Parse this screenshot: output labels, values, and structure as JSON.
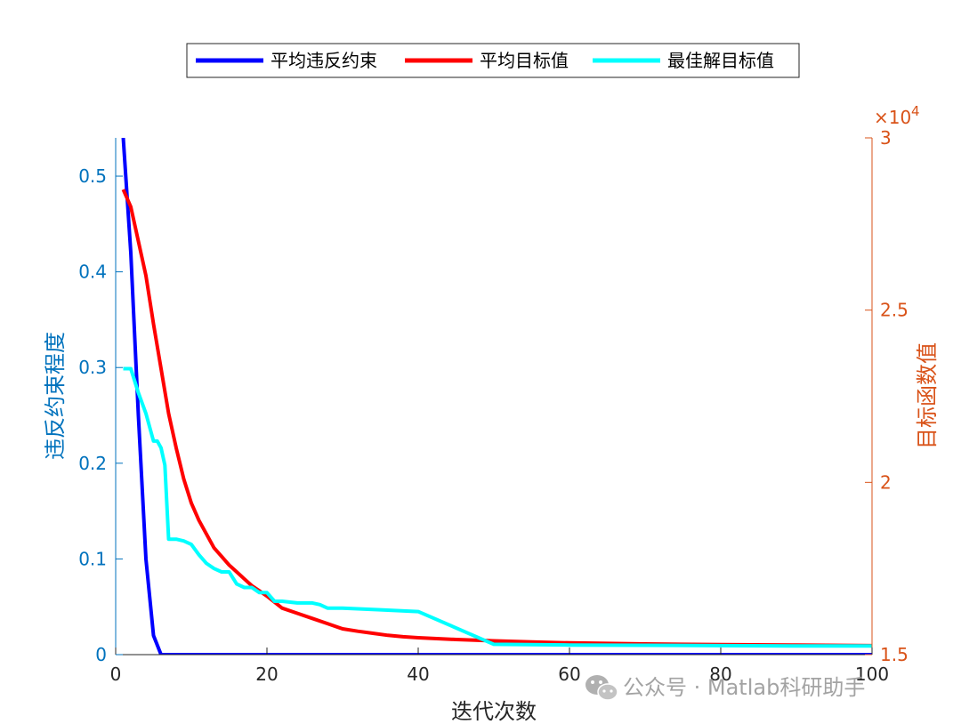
{
  "colors": {
    "left_axis": "#0072BD",
    "right_axis": "#D95319",
    "axis_black": "#262626",
    "series_blue": "#0000FF",
    "series_red": "#FF0000",
    "series_cyan": "#00FFFF",
    "watermark": "#9a9a9a"
  },
  "watermark": {
    "text": "公众号 · Matlab科研助手",
    "icon": "wechat-icon"
  },
  "chart_data": {
    "type": "line",
    "xlabel": "迭代次数",
    "ylabel_left": "违反约束程度",
    "ylabel_right": "目标函数值",
    "xlim": [
      0,
      100
    ],
    "ylim_left": [
      0,
      0.54
    ],
    "ylim_right": [
      15000,
      30000
    ],
    "right_exponent_label": "×10",
    "right_exponent_power": "4",
    "x_ticks": [
      0,
      20,
      40,
      60,
      80,
      100
    ],
    "x_tick_labels": [
      "0",
      "20",
      "40",
      "60",
      "80",
      "100"
    ],
    "y_left_ticks": [
      0,
      0.1,
      0.2,
      0.3,
      0.4,
      0.5
    ],
    "y_left_tick_labels": [
      "0",
      "0.1",
      "0.2",
      "0.3",
      "0.4",
      "0.5"
    ],
    "y_right_ticks": [
      15000,
      20000,
      25000,
      30000
    ],
    "y_right_tick_labels": [
      "1.5",
      "2",
      "2.5",
      "3"
    ],
    "grid": false,
    "legend_position": "top-center",
    "series": [
      {
        "name": "平均违反约束",
        "axis": "left",
        "color": "#0000FF",
        "x": [
          1,
          2,
          3,
          4,
          5,
          6,
          7,
          10,
          20,
          40,
          60,
          80,
          100
        ],
        "y": [
          0.54,
          0.42,
          0.25,
          0.1,
          0.02,
          0.0,
          0.0,
          0.0,
          0.0,
          0.0,
          0.0,
          0.0,
          0.0
        ]
      },
      {
        "name": "平均目标值",
        "axis": "right",
        "color": "#FF0000",
        "x": [
          1,
          2,
          3,
          4,
          5,
          6,
          7,
          8,
          9,
          10,
          11,
          12,
          13,
          14,
          15,
          16,
          17,
          18,
          19,
          20,
          22,
          24,
          26,
          28,
          30,
          32,
          34,
          36,
          38,
          40,
          45,
          50,
          55,
          60,
          70,
          80,
          90,
          100
        ],
        "y": [
          28500,
          28000,
          27000,
          26000,
          24600,
          23300,
          22000,
          21000,
          20100,
          19400,
          18900,
          18500,
          18100,
          17850,
          17600,
          17400,
          17200,
          17000,
          16850,
          16700,
          16350,
          16200,
          16050,
          15900,
          15750,
          15680,
          15620,
          15560,
          15520,
          15490,
          15440,
          15400,
          15370,
          15340,
          15310,
          15290,
          15275,
          15260
        ]
      },
      {
        "name": "最佳解目标值",
        "axis": "right",
        "color": "#00FFFF",
        "x": [
          1,
          2,
          3,
          4,
          5,
          5.5,
          6,
          6.5,
          7,
          8,
          9,
          10,
          11,
          12,
          13,
          14,
          15,
          16,
          17,
          18,
          19,
          20,
          21,
          22,
          24,
          26,
          27,
          28,
          30,
          35,
          40,
          50,
          60,
          70,
          80,
          90,
          100
        ],
        "y": [
          23300,
          23300,
          22600,
          22000,
          21200,
          21200,
          21000,
          20500,
          18350,
          18350,
          18300,
          18200,
          17900,
          17650,
          17500,
          17400,
          17400,
          17050,
          16950,
          16950,
          16800,
          16800,
          16550,
          16550,
          16500,
          16500,
          16450,
          16350,
          16350,
          16300,
          16250,
          15300,
          15280,
          15270,
          15260,
          15250,
          15250
        ]
      }
    ]
  }
}
